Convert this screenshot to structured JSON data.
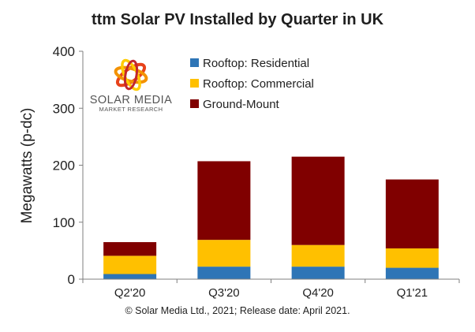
{
  "chart_data": {
    "type": "bar",
    "stacked": true,
    "title": "ttm Solar PV Installed by Quarter in UK",
    "ylabel": "Megawatts (p-dc)",
    "xlabel": "",
    "ylim": [
      0,
      400
    ],
    "yticks": [
      0,
      100,
      200,
      300,
      400
    ],
    "categories": [
      "Q2'20",
      "Q3'20",
      "Q4'20",
      "Q1'21"
    ],
    "series": [
      {
        "name": "Rooftop:  Residential",
        "color": "#2e75b6",
        "values": [
          9,
          22,
          22,
          20
        ]
      },
      {
        "name": "Rooftop:  Commercial",
        "color": "#ffc000",
        "values": [
          32,
          47,
          38,
          34
        ]
      },
      {
        "name": "Ground-Mount",
        "color": "#800000",
        "values": [
          24,
          138,
          155,
          121
        ]
      }
    ],
    "legend_position": "top-left",
    "grid": false
  },
  "logo": {
    "line1": "SOLAR MEDIA",
    "line2": "MARKET RESEARCH"
  },
  "footer": "© Solar Media Ltd., 2021; Release date: April 2021."
}
